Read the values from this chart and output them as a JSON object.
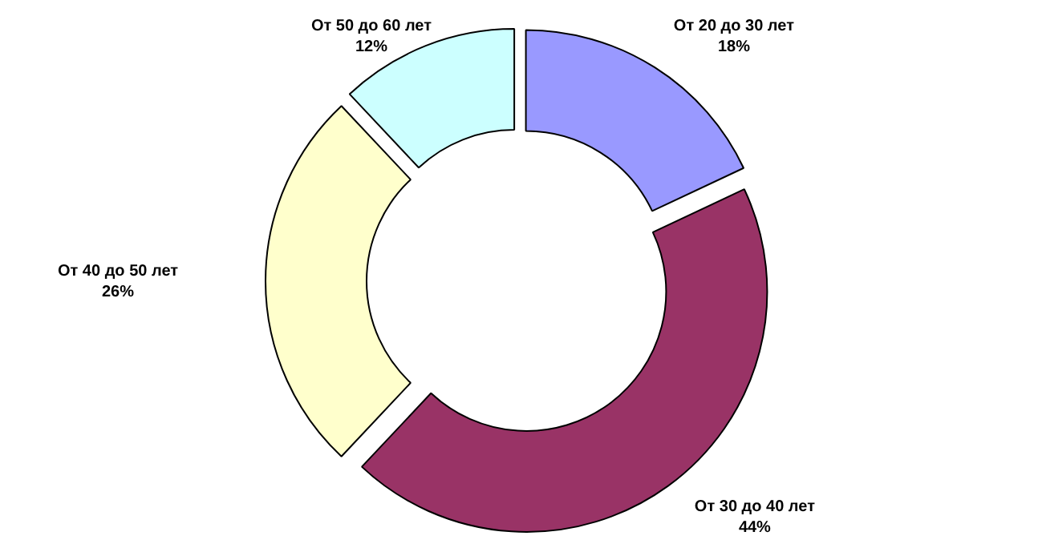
{
  "chart_data": {
    "type": "donut",
    "categories": [
      "От 20 до 30 лет",
      "От 30 до 40 лет",
      "От 40 до 50 лет",
      "От 50 до 60 лет"
    ],
    "values": [
      18,
      44,
      26,
      12
    ],
    "value_labels": [
      "18%",
      "44%",
      "26%",
      "12%"
    ],
    "colors": [
      "#9999ff",
      "#993366",
      "#ffffcc",
      "#ccffff"
    ]
  }
}
